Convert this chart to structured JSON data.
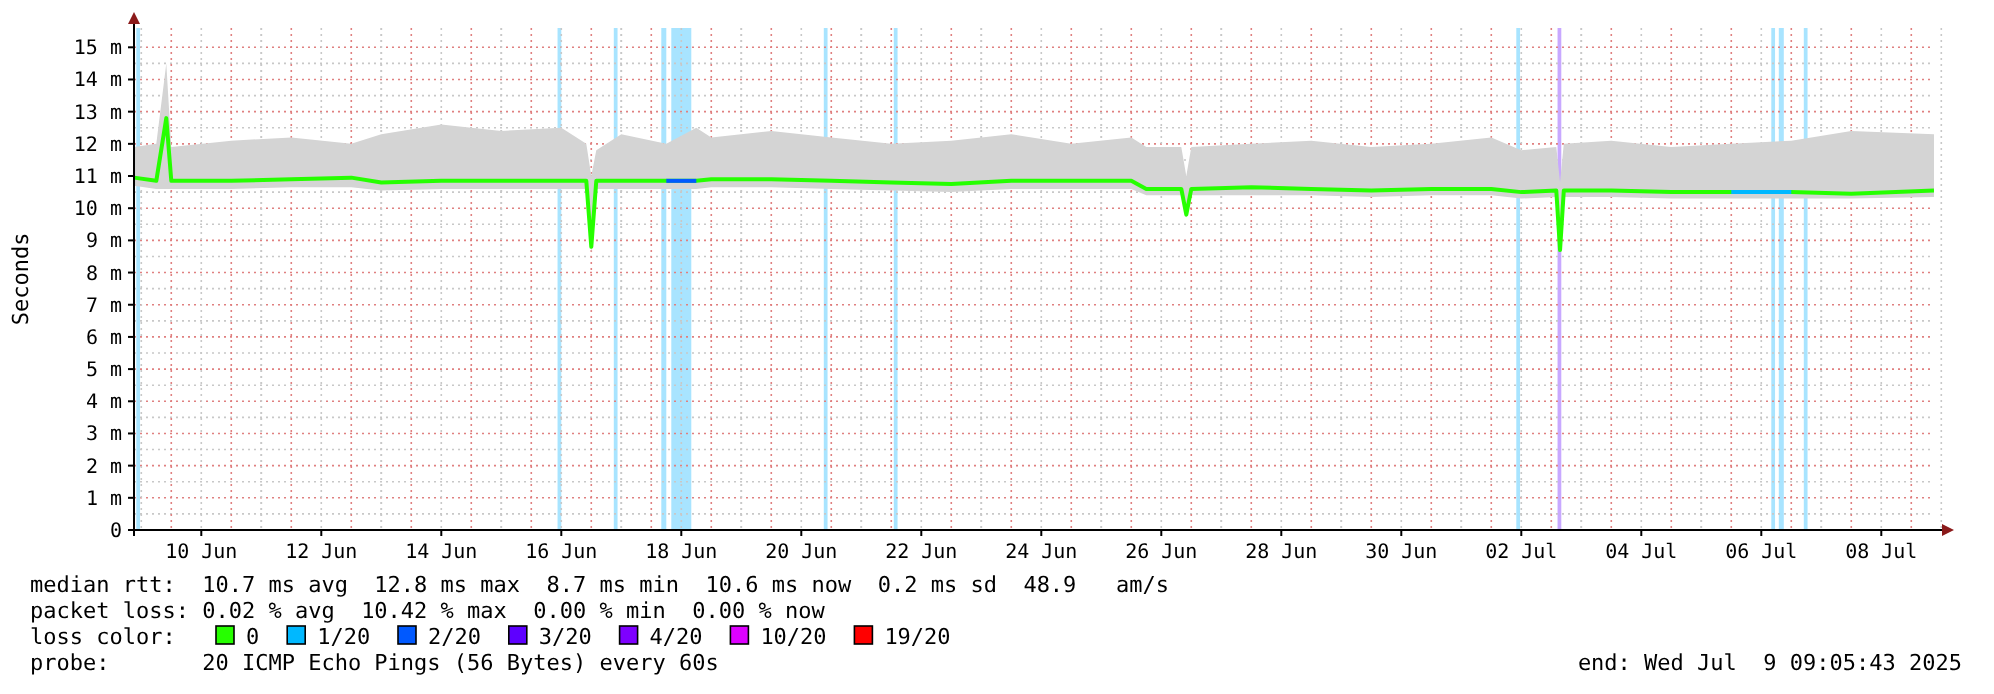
{
  "chart_data": {
    "type": "line",
    "ylabel": "Seconds",
    "legend_title": "loss color:",
    "legend": "bottom",
    "grid": true,
    "xlim": [
      "2025-06-09T09:05",
      "2025-07-09T09:05"
    ],
    "xticks": [
      {
        "value": "2025-06-10T12:00",
        "label": "10 Jun"
      },
      {
        "value": "2025-06-12T12:00",
        "label": "12 Jun"
      },
      {
        "value": "2025-06-14T12:00",
        "label": "14 Jun"
      },
      {
        "value": "2025-06-16T12:00",
        "label": "16 Jun"
      },
      {
        "value": "2025-06-18T12:00",
        "label": "18 Jun"
      },
      {
        "value": "2025-06-20T12:00",
        "label": "20 Jun"
      },
      {
        "value": "2025-06-22T12:00",
        "label": "22 Jun"
      },
      {
        "value": "2025-06-24T12:00",
        "label": "24 Jun"
      },
      {
        "value": "2025-06-26T12:00",
        "label": "26 Jun"
      },
      {
        "value": "2025-06-28T12:00",
        "label": "28 Jun"
      },
      {
        "value": "2025-06-30T12:00",
        "label": "30 Jun"
      },
      {
        "value": "2025-07-02T12:00",
        "label": "02 Jul"
      },
      {
        "value": "2025-07-04T12:00",
        "label": "04 Jul"
      },
      {
        "value": "2025-07-06T12:00",
        "label": "06 Jul"
      },
      {
        "value": "2025-07-08T12:00",
        "label": "08 Jul"
      }
    ],
    "ylim": [
      0,
      15.6
    ],
    "yticks": [
      0,
      {
        "value": 1,
        "label": "1 m"
      },
      {
        "value": 2,
        "label": "2 m"
      },
      {
        "value": 3,
        "label": "3 m"
      },
      {
        "value": 4,
        "label": "4 m"
      },
      {
        "value": 5,
        "label": "5 m"
      },
      {
        "value": 6,
        "label": "6 m"
      },
      {
        "value": 7,
        "label": "7 m"
      },
      {
        "value": 8,
        "label": "8 m"
      },
      {
        "value": 9,
        "label": "9 m"
      },
      {
        "value": 10,
        "label": "10 m"
      },
      {
        "value": 11,
        "label": "11 m"
      },
      {
        "value": 12,
        "label": "12 m"
      },
      {
        "value": 13,
        "label": "13 m"
      },
      {
        "value": 14,
        "label": "14 m"
      },
      {
        "value": 15,
        "label": "15 m"
      }
    ],
    "x": [
      "2025-06-09T09:05",
      "2025-06-09T18:00",
      "2025-06-09T22:00",
      "2025-06-10T00:00",
      "2025-06-11T00:00",
      "2025-06-12T00:00",
      "2025-06-13T00:00",
      "2025-06-13T12:00",
      "2025-06-14T12:00",
      "2025-06-15T12:00",
      "2025-06-16T12:00",
      "2025-06-16T22:00",
      "2025-06-17T00:00",
      "2025-06-17T02:00",
      "2025-06-17T12:00",
      "2025-06-18T06:00",
      "2025-06-18T18:00",
      "2025-06-19T00:00",
      "2025-06-20T00:00",
      "2025-06-21T00:00",
      "2025-06-22T00:00",
      "2025-06-23T00:00",
      "2025-06-24T00:00",
      "2025-06-25T00:00",
      "2025-06-26T00:00",
      "2025-06-26T06:00",
      "2025-06-26T20:00",
      "2025-06-26T22:00",
      "2025-06-27T00:00",
      "2025-06-28T00:00",
      "2025-06-29T00:00",
      "2025-06-30T00:00",
      "2025-07-01T00:00",
      "2025-07-02T00:00",
      "2025-07-02T12:00",
      "2025-07-03T02:00",
      "2025-07-03T03:30",
      "2025-07-03T05:00",
      "2025-07-04T00:00",
      "2025-07-05T00:00",
      "2025-07-06T00:00",
      "2025-07-07T00:00",
      "2025-07-08T00:00",
      "2025-07-09T09:05"
    ],
    "series": [
      {
        "name": "0",
        "color": "#26ff00",
        "values": [
          10.95,
          10.85,
          12.8,
          10.85,
          10.85,
          10.9,
          10.95,
          10.8,
          10.85,
          10.85,
          10.85,
          10.85,
          8.8,
          10.85,
          10.85,
          10.85,
          10.85,
          10.9,
          10.9,
          10.85,
          10.8,
          10.75,
          10.85,
          10.85,
          10.85,
          10.6,
          10.6,
          9.8,
          10.6,
          10.65,
          10.6,
          10.55,
          10.6,
          10.6,
          10.5,
          10.55,
          8.7,
          10.55,
          10.55,
          10.5,
          10.5,
          10.5,
          10.45,
          10.55
        ],
        "lower": [
          10.7,
          10.6,
          10.6,
          10.6,
          10.6,
          10.65,
          10.65,
          10.55,
          10.6,
          10.6,
          10.6,
          10.6,
          8.6,
          10.6,
          10.6,
          10.6,
          10.6,
          10.65,
          10.65,
          10.6,
          10.55,
          10.5,
          10.6,
          10.6,
          10.6,
          10.4,
          10.4,
          9.7,
          10.4,
          10.4,
          10.4,
          10.35,
          10.4,
          10.4,
          10.3,
          10.35,
          8.6,
          10.35,
          10.35,
          10.3,
          10.3,
          10.3,
          10.3,
          10.35
        ],
        "upper": [
          11.9,
          12.0,
          14.5,
          11.9,
          12.1,
          12.2,
          12.0,
          12.3,
          12.6,
          12.4,
          12.5,
          12.0,
          11.0,
          11.8,
          12.3,
          12.0,
          12.5,
          12.2,
          12.4,
          12.2,
          12.0,
          12.1,
          12.3,
          12.0,
          12.2,
          11.9,
          11.9,
          11.0,
          11.9,
          12.0,
          12.1,
          11.9,
          12.0,
          12.2,
          11.8,
          11.9,
          10.8,
          12.0,
          12.1,
          11.9,
          12.0,
          12.1,
          12.4,
          12.3
        ]
      },
      {
        "name": "1/20",
        "color": "#00b8ff",
        "values": [
          null,
          null,
          null,
          null,
          null,
          null,
          null,
          null,
          null,
          null,
          null,
          null,
          null,
          null,
          null,
          null,
          null,
          null,
          null,
          null,
          null,
          null,
          null,
          null,
          null,
          null,
          null,
          null,
          null,
          null,
          null,
          null,
          null,
          null,
          null,
          null,
          null,
          null,
          null,
          null,
          10.5,
          10.5,
          null,
          null
        ]
      },
      {
        "name": "2/20",
        "color": "#0059ff",
        "values": [
          null,
          null,
          null,
          null,
          null,
          null,
          null,
          null,
          null,
          null,
          null,
          null,
          null,
          null,
          null,
          10.85,
          10.85,
          null,
          null,
          null,
          null,
          null,
          null,
          null,
          null,
          null,
          null,
          null,
          null,
          null,
          null,
          null,
          null,
          null,
          null,
          null,
          null,
          null,
          null,
          null,
          null,
          null,
          null,
          null
        ]
      },
      {
        "name": "3/20",
        "color": "#5e00ff",
        "values": [
          null,
          null,
          null,
          null,
          null,
          null,
          null,
          null,
          null,
          null,
          null,
          null,
          null,
          null,
          null,
          null,
          null,
          null,
          null,
          null,
          null,
          null,
          null,
          null,
          null,
          null,
          null,
          null,
          null,
          null,
          null,
          null,
          null,
          null,
          null,
          null,
          null,
          null,
          null,
          null,
          null,
          null,
          null,
          null
        ]
      },
      {
        "name": "4/20",
        "color": "#7e00ff",
        "values": [
          null,
          null,
          null,
          null,
          null,
          null,
          null,
          null,
          null,
          null,
          null,
          null,
          null,
          null,
          null,
          null,
          null,
          null,
          null,
          null,
          null,
          null,
          null,
          null,
          null,
          null,
          null,
          null,
          null,
          null,
          null,
          null,
          null,
          null,
          null,
          null,
          null,
          null,
          null,
          null,
          null,
          null,
          null,
          null
        ]
      },
      {
        "name": "10/20",
        "color": "#dd00ff",
        "values": [
          null,
          null,
          null,
          null,
          null,
          null,
          null,
          null,
          null,
          null,
          null,
          null,
          null,
          null,
          null,
          null,
          null,
          null,
          null,
          null,
          null,
          null,
          null,
          null,
          null,
          null,
          null,
          null,
          null,
          null,
          null,
          null,
          null,
          null,
          null,
          null,
          null,
          null,
          null,
          null,
          null,
          null,
          null,
          null
        ]
      },
      {
        "name": "19/20",
        "color": "#ff0000",
        "values": [
          null,
          null,
          null,
          null,
          null,
          null,
          null,
          null,
          null,
          null,
          null,
          null,
          null,
          null,
          null,
          null,
          null,
          null,
          null,
          null,
          null,
          null,
          null,
          null,
          null,
          null,
          null,
          null,
          null,
          null,
          null,
          null,
          null,
          null,
          null,
          null,
          null,
          null,
          null,
          null,
          null,
          null,
          null,
          null
        ]
      }
    ],
    "bands": [
      {
        "axis": "x",
        "from": "2025-06-09T10:00",
        "to": "2025-06-09T11:30",
        "color": "#a8e4ff"
      },
      {
        "axis": "x",
        "from": "2025-06-16T10:30",
        "to": "2025-06-16T12:00",
        "color": "#a8e4ff"
      },
      {
        "axis": "x",
        "from": "2025-06-17T09:00",
        "to": "2025-06-17T10:30",
        "color": "#a8e4ff"
      },
      {
        "axis": "x",
        "from": "2025-06-18T04:00",
        "to": "2025-06-18T06:00",
        "color": "#a8e4ff"
      },
      {
        "axis": "x",
        "from": "2025-06-18T08:00",
        "to": "2025-06-18T16:00",
        "color": "#a8e4ff"
      },
      {
        "axis": "x",
        "from": "2025-06-20T21:00",
        "to": "2025-06-20T22:30",
        "color": "#a8e4ff"
      },
      {
        "axis": "x",
        "from": "2025-06-22T01:00",
        "to": "2025-06-22T02:30",
        "color": "#a8e4ff"
      },
      {
        "axis": "x",
        "from": "2025-07-02T10:00",
        "to": "2025-07-02T11:30",
        "color": "#a8e4ff"
      },
      {
        "axis": "x",
        "from": "2025-07-03T02:30",
        "to": "2025-07-03T04:00",
        "color": "#c8a8ff"
      },
      {
        "axis": "x",
        "from": "2025-07-06T16:00",
        "to": "2025-07-06T17:30",
        "color": "#a8e4ff"
      },
      {
        "axis": "x",
        "from": "2025-07-06T19:00",
        "to": "2025-07-06T21:00",
        "color": "#a8e4ff"
      },
      {
        "axis": "x",
        "from": "2025-07-07T05:00",
        "to": "2025-07-07T06:30",
        "color": "#a8e4ff"
      }
    ],
    "annotations": [
      "median rtt:  10.7 ms avg  12.8 ms max  8.7 ms min  10.6 ms now  0.2 ms sd  48.9   am/s",
      "packet loss: 0.02 % avg  10.42 % max  0.00 % min  0.00 % now",
      "probe:       20 ICMP Echo Pings (56 Bytes) every 60s",
      "end: Wed Jul  9 09:05:43 2025"
    ]
  }
}
